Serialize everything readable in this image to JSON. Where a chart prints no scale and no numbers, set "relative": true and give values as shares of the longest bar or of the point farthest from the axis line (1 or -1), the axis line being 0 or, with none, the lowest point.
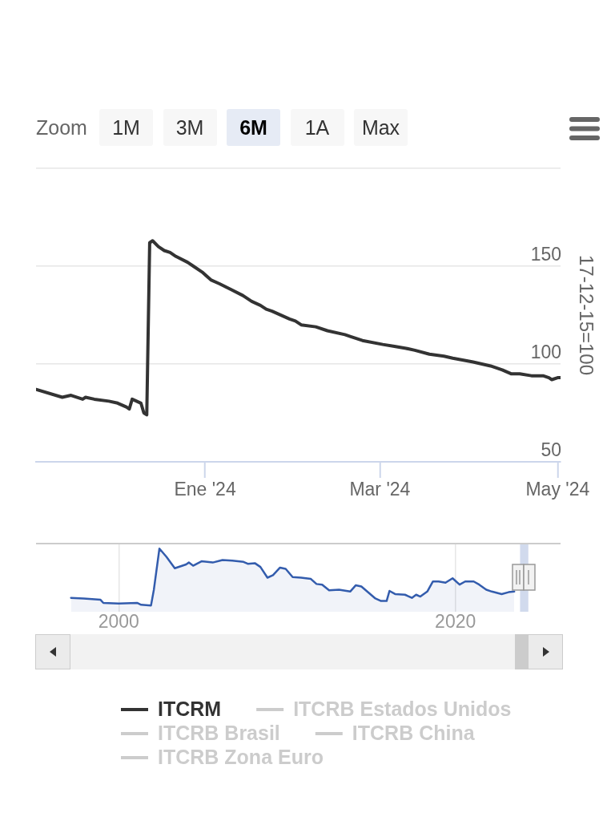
{
  "chart_data": [
    {
      "type": "line",
      "x": [
        "2023-11-04",
        "2023-11-13",
        "2023-11-16",
        "2023-11-20",
        "2023-11-21",
        "2023-11-24",
        "2023-11-29",
        "2023-12-02",
        "2023-12-05",
        "2023-12-06",
        "2023-12-07",
        "2023-12-10",
        "2023-12-11",
        "2023-12-12",
        "2023-12-13",
        "2023-12-14",
        "2023-12-16",
        "2023-12-18",
        "2023-12-20",
        "2023-12-22",
        "2023-12-26",
        "2023-12-28",
        "2023-12-31",
        "2024-01-03",
        "2024-01-06",
        "2024-01-10",
        "2024-01-14",
        "2024-01-17",
        "2024-01-20",
        "2024-01-22",
        "2024-01-24",
        "2024-01-30",
        "2024-02-01",
        "2024-02-03",
        "2024-02-08",
        "2024-02-12",
        "2024-02-18",
        "2024-02-20",
        "2024-02-24",
        "2024-03-02",
        "2024-03-06",
        "2024-03-10",
        "2024-03-13",
        "2024-03-18",
        "2024-03-23",
        "2024-03-26",
        "2024-04-02",
        "2024-04-08",
        "2024-04-12",
        "2024-04-15",
        "2024-04-18",
        "2024-04-22",
        "2024-04-26",
        "2024-04-28",
        "2024-04-29",
        "2024-05-01",
        "2024-05-02"
      ],
      "series": [
        {
          "name": "ITCRM",
          "color": "#333333",
          "values": [
            87,
            83,
            84,
            82,
            83,
            82,
            81,
            80,
            78,
            77,
            82,
            80,
            75,
            74,
            162,
            163,
            160,
            158,
            157,
            155,
            152,
            150,
            147,
            143,
            141,
            138,
            135,
            132,
            130,
            128,
            127,
            123,
            122,
            120,
            119,
            117,
            115,
            114,
            112,
            110,
            109,
            108,
            107,
            105,
            104,
            103,
            101,
            99,
            97,
            95,
            95,
            94,
            94,
            93,
            92,
            93,
            93
          ]
        },
        {
          "name": "ITCRB Estados Unidos",
          "color": "#cccccc",
          "values": [
            null,
            null,
            null,
            null,
            null,
            null,
            null,
            null,
            null,
            null,
            null,
            null,
            null,
            null,
            null,
            null,
            null,
            null,
            null,
            null,
            null,
            null,
            null,
            null,
            null,
            null,
            null,
            null,
            null,
            null,
            null,
            null,
            null,
            null,
            null,
            null,
            null,
            null,
            null,
            null,
            null,
            null,
            null,
            null,
            null,
            null,
            null,
            null,
            null,
            null,
            null,
            null,
            null,
            null,
            null,
            null,
            null
          ]
        },
        {
          "name": "ITCRB Brasil",
          "color": "#cccccc",
          "values": [
            null,
            null,
            null,
            null,
            null,
            null,
            null,
            null,
            null,
            null,
            null,
            null,
            null,
            null,
            null,
            null,
            null,
            null,
            null,
            null,
            null,
            null,
            null,
            null,
            null,
            null,
            null,
            null,
            null,
            null,
            null,
            null,
            null,
            null,
            null,
            null,
            null,
            null,
            null,
            null,
            null,
            null,
            null,
            null,
            null,
            null,
            null,
            null,
            null,
            null,
            null,
            null,
            null,
            null,
            null,
            null,
            null
          ]
        },
        {
          "name": "ITCRB China",
          "color": "#cccccc",
          "values": [
            null,
            null,
            null,
            null,
            null,
            null,
            null,
            null,
            null,
            null,
            null,
            null,
            null,
            null,
            null,
            null,
            null,
            null,
            null,
            null,
            null,
            null,
            null,
            null,
            null,
            null,
            null,
            null,
            null,
            null,
            null,
            null,
            null,
            null,
            null,
            null,
            null,
            null,
            null,
            null,
            null,
            null,
            null,
            null,
            null,
            null,
            null,
            null,
            null,
            null,
            null,
            null,
            null,
            null,
            null,
            null,
            null
          ]
        },
        {
          "name": "ITCRB Zona Euro",
          "color": "#cccccc",
          "values": [
            null,
            null,
            null,
            null,
            null,
            null,
            null,
            null,
            null,
            null,
            null,
            null,
            null,
            null,
            null,
            null,
            null,
            null,
            null,
            null,
            null,
            null,
            null,
            null,
            null,
            null,
            null,
            null,
            null,
            null,
            null,
            null,
            null,
            null,
            null,
            null,
            null,
            null,
            null,
            null,
            null,
            null,
            null,
            null,
            null,
            null,
            null,
            null,
            null,
            null,
            null,
            null,
            null,
            null,
            null,
            null,
            null
          ]
        }
      ],
      "xlim": [
        "2023-11-04",
        "2024-05-02"
      ],
      "xticks": [
        {
          "value": "2024-01-01",
          "label": "Ene '24"
        },
        {
          "value": "2024-03-01",
          "label": "Mar '24"
        },
        {
          "value": "2024-05-01",
          "label": "May '24"
        }
      ],
      "ylim": [
        50,
        200
      ],
      "yticks": [
        50,
        100,
        150,
        {
          "value": 200,
          "label": null
        }
      ],
      "ylabel": "17-12-15=100",
      "grid": "y",
      "legend": "bottom",
      "annotations": [
        "Zoom",
        "1M",
        "3M",
        "6M",
        "1A",
        "Max"
      ]
    },
    {
      "type": "area",
      "relative": true,
      "x": [
        "1997-03",
        "1997-12",
        "1998-12",
        "1999-02",
        "2000-01",
        "2001-02",
        "2001-05",
        "2001-12",
        "2002-02",
        "2002-06",
        "2002-11",
        "2003-05",
        "2004-01",
        "2004-03",
        "2004-06",
        "2004-12",
        "2005-08",
        "2006-03",
        "2006-10",
        "2007-06",
        "2007-09",
        "2008-02",
        "2008-06",
        "2008-11",
        "2009-03",
        "2009-08",
        "2009-12",
        "2010-05",
        "2010-11",
        "2011-06",
        "2011-10",
        "2012-02",
        "2012-07",
        "2013-02",
        "2013-10",
        "2014-02",
        "2014-06",
        "2015-04",
        "2015-08",
        "2015-12",
        "2016-02",
        "2016-06",
        "2017-01",
        "2017-06",
        "2017-09",
        "2017-12",
        "2018-05",
        "2018-09",
        "2019-01",
        "2019-06",
        "2019-11",
        "2020-04",
        "2020-08",
        "2021-02",
        "2021-06",
        "2021-11",
        "2022-03",
        "2022-10",
        "2023-03",
        "2023-07"
      ],
      "values": [
        0.22,
        0.21,
        0.19,
        0.14,
        0.13,
        0.14,
        0.11,
        0.1,
        0.35,
        1,
        0.87,
        0.69,
        0.75,
        0.78,
        0.73,
        0.8,
        0.78,
        0.82,
        0.81,
        0.79,
        0.76,
        0.77,
        0.71,
        0.54,
        0.58,
        0.7,
        0.68,
        0.55,
        0.54,
        0.52,
        0.44,
        0.43,
        0.34,
        0.35,
        0.32,
        0.42,
        0.4,
        0.21,
        0.17,
        0.17,
        0.33,
        0.28,
        0.27,
        0.22,
        0.27,
        0.24,
        0.32,
        0.48,
        0.48,
        0.46,
        0.53,
        0.43,
        0.48,
        0.48,
        0.43,
        0.35,
        0.32,
        0.28,
        0.31,
        0.32
      ],
      "color": "#335cad",
      "xlim": [
        "1995-02",
        "2026-04"
      ],
      "xticks": [
        {
          "value": "2000-01-01",
          "label": "2000"
        },
        {
          "value": "2020-01-01",
          "label": "2020"
        }
      ],
      "grid": "x",
      "tick_labels": "x",
      "bands": [
        {
          "axis": "x",
          "from": "2023-11-04",
          "to": "2024-05-02",
          "color": "#6685c2"
        }
      ]
    }
  ]
}
